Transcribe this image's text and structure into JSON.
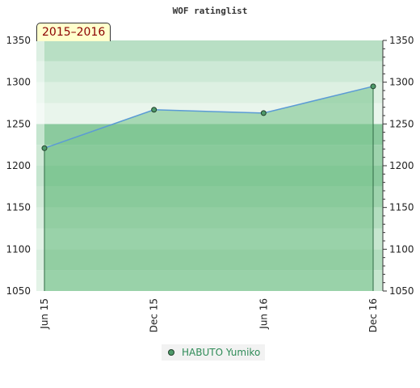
{
  "chart_data": {
    "type": "area",
    "title": "WOF ratinglist",
    "period_label": "2015–2016",
    "categories": [
      "Jun 15",
      "Dec 15",
      "Jun 16",
      "Dec 16"
    ],
    "series": [
      {
        "name": "HABUTO Yumiko",
        "values": [
          1221,
          1267,
          1263,
          1295
        ]
      }
    ],
    "ylim": [
      1050,
      1350
    ],
    "yticks": [
      1050,
      1100,
      1150,
      1200,
      1250,
      1300,
      1350
    ],
    "right_axis": true,
    "legend_position": "bottom-center",
    "colors": {
      "line": "#5b9bd5",
      "area": "#7cc490",
      "marker": "#4f9a6a",
      "period_text": "#8b0000",
      "legend_text": "#2e8b57"
    }
  }
}
